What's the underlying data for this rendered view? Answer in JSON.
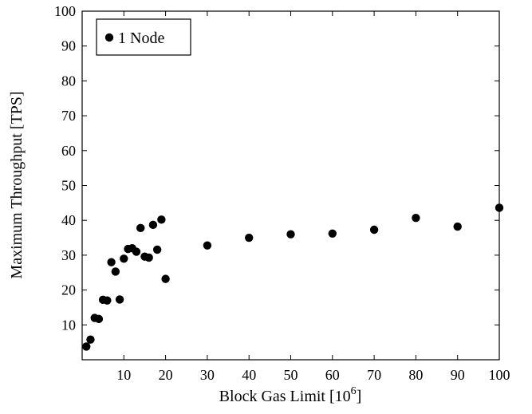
{
  "chart_data": {
    "type": "scatter",
    "title": "",
    "xlabel_prefix": "Block Gas Limit [10",
    "xlabel_exponent": "6",
    "xlabel_suffix": "]",
    "ylabel": "Maximum Throughput [TPS]",
    "xlim": [
      0,
      100
    ],
    "ylim": [
      0,
      100
    ],
    "xticks": [
      10,
      20,
      30,
      40,
      50,
      60,
      70,
      80,
      90,
      100
    ],
    "yticks": [
      10,
      20,
      30,
      40,
      50,
      60,
      70,
      80,
      90,
      100
    ],
    "grid": false,
    "legend_position": "top-left",
    "series": [
      {
        "name": "1 Node",
        "marker": "circle",
        "color": "#000000",
        "points": [
          [
            1,
            3.8
          ],
          [
            2,
            5.8
          ],
          [
            3,
            12.0
          ],
          [
            4,
            11.7
          ],
          [
            5,
            17.2
          ],
          [
            6,
            17.0
          ],
          [
            7,
            28.0
          ],
          [
            8,
            25.3
          ],
          [
            9,
            17.3
          ],
          [
            10,
            29.0
          ],
          [
            11,
            31.8
          ],
          [
            12,
            32.0
          ],
          [
            13,
            31.0
          ],
          [
            14,
            37.8
          ],
          [
            15,
            29.6
          ],
          [
            16,
            29.3
          ],
          [
            17,
            38.7
          ],
          [
            18,
            31.6
          ],
          [
            19,
            40.2
          ],
          [
            20,
            23.2
          ],
          [
            30,
            32.8
          ],
          [
            40,
            35.0
          ],
          [
            50,
            36.0
          ],
          [
            60,
            36.2
          ],
          [
            70,
            37.3
          ],
          [
            80,
            40.7
          ],
          [
            90,
            38.2
          ],
          [
            100,
            43.6
          ]
        ]
      }
    ]
  }
}
